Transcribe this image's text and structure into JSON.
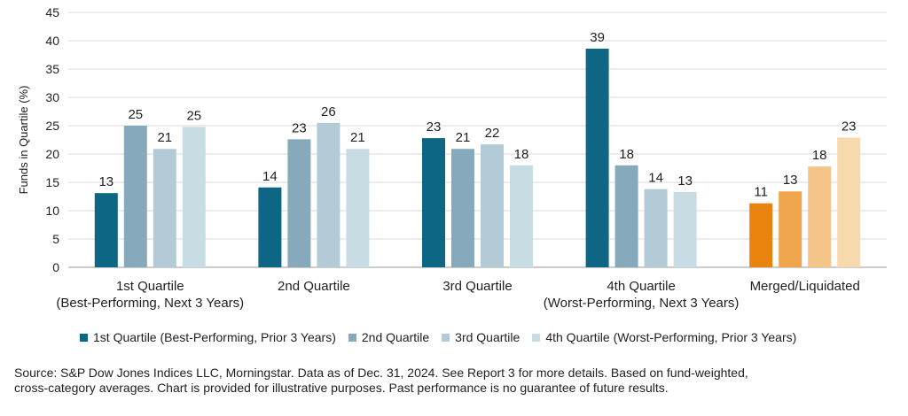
{
  "chart_data": {
    "type": "bar",
    "ylabel": "Funds in Quartile (%)",
    "ylim": [
      0,
      45
    ],
    "yticks": [
      0,
      5,
      10,
      15,
      20,
      25,
      30,
      35,
      40,
      45
    ],
    "grid": true,
    "categories": [
      "1st Quartile (Best-Performing, Next 3 Years)",
      "2nd Quartile",
      "3rd Quartile",
      "4th Quartile (Worst-Performing, Next 3 Years)",
      "Merged/Liquidated"
    ],
    "series": [
      {
        "name": "1st Quartile (Best-Performing, Prior 3 Years)",
        "values": [
          13.1,
          14.1,
          22.8,
          38.6,
          11.3
        ],
        "labels": [
          "13",
          "14",
          "23",
          "39",
          "11"
        ]
      },
      {
        "name": "2nd Quartile",
        "values": [
          25.0,
          22.6,
          20.9,
          18.0,
          13.4
        ],
        "labels": [
          "25",
          "23",
          "21",
          "18",
          "13"
        ]
      },
      {
        "name": "3rd Quartile",
        "values": [
          20.9,
          25.5,
          21.7,
          13.8,
          17.8
        ],
        "labels": [
          "21",
          "26",
          "22",
          "14",
          "18"
        ]
      },
      {
        "name": "4th Quartile (Worst-Performing, Prior 3 Years)",
        "values": [
          24.8,
          20.9,
          18.0,
          13.3,
          22.9
        ],
        "labels": [
          "25",
          "21",
          "18",
          "13",
          "23"
        ]
      }
    ],
    "series_colors": [
      "#0e6685",
      "#86aabb",
      "#b3cbd6",
      "#c8dce4"
    ],
    "merged_colors": [
      "#e8830f",
      "#efa54e",
      "#f4c488",
      "#f8d8ad"
    ],
    "legend_position": "bottom"
  },
  "legend": {
    "items": [
      {
        "label": "1st Quartile (Best-Performing, Prior 3 Years)",
        "color": "#0e6685"
      },
      {
        "label": "2nd Quartile",
        "color": "#86aabb"
      },
      {
        "label": "3rd Quartile",
        "color": "#b3cbd6"
      },
      {
        "label": "4th Quartile (Worst-Performing, Prior 3 Years)",
        "color": "#c8dce4"
      }
    ]
  },
  "footer": {
    "source_line1": "Source: S&P Dow Jones Indices LLC, Morningstar.  Data as of Dec. 31, 2024.  See Report 3 for more details.  Based on fund-weighted,",
    "source_line2": "cross-category averages.  Chart is provided for illustrative purposes.  Past performance is no guarantee of future results."
  }
}
